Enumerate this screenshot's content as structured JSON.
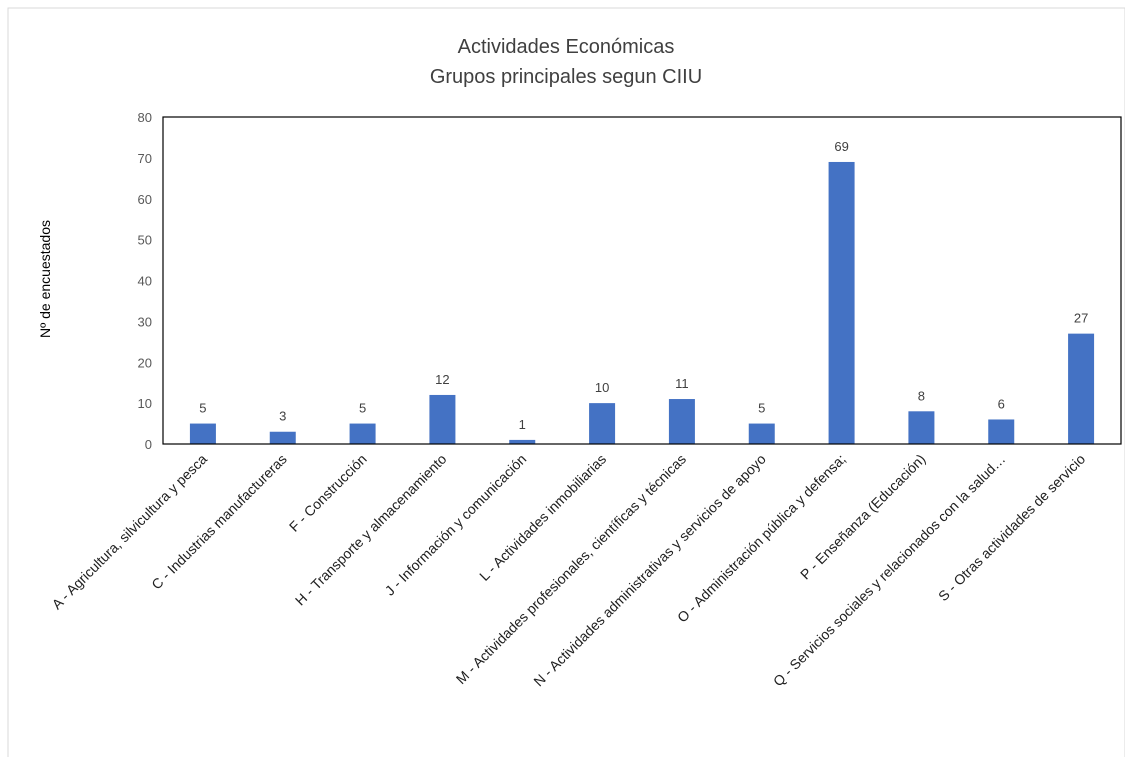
{
  "chart_data": {
    "type": "bar",
    "title": "Actividades Económicas",
    "subtitle": "Grupos principales segun  CIIU",
    "xlabel": "",
    "ylabel": "Nº de encuestados",
    "ylim": [
      0,
      80
    ],
    "yticks": [
      0,
      10,
      20,
      30,
      40,
      50,
      60,
      70,
      80
    ],
    "grid": false,
    "legend": "none",
    "bar_color": "#4472C4",
    "show_data_labels": true,
    "categories": [
      "A - Agricultura, silvicultura y pesca",
      "C - Industrias manufactureras",
      "F - Construcción",
      "H - Transporte y almacenamiento",
      "J - Información y comunicación",
      "L - Actividades inmobiliarias",
      "M - Actividades profesionales, científicas y técnicas",
      "N - Actividades administrativas y servicios de apoyo",
      "O - Administración pública y defensa;",
      "P - Enseñanza (Educación)",
      "Q - Servicios sociales y relacionados con la salud…",
      "S - Otras actividades de servicio"
    ],
    "values": [
      5,
      3,
      5,
      12,
      1,
      10,
      11,
      5,
      69,
      8,
      6,
      27
    ]
  }
}
